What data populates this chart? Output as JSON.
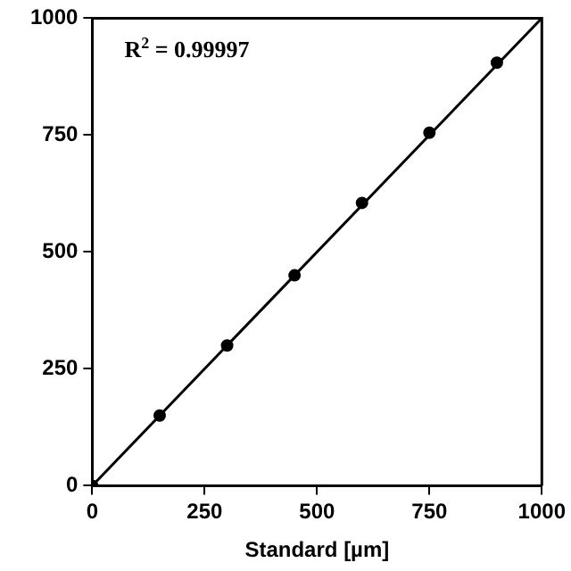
{
  "chart_data": {
    "type": "scatter",
    "xlabel": "Standard [µm]",
    "annotations": [
      "R$^{2}$ = 0.99997"
    ],
    "xlim": [
      0,
      1000
    ],
    "ylim": [
      0,
      1000
    ],
    "xticks": [
      0,
      250,
      500,
      750,
      1000
    ],
    "yticks": [
      0,
      250,
      500,
      750,
      1000
    ],
    "grid": false,
    "legend": false,
    "series": [
      {
        "marker": "circle",
        "color": "#000000",
        "x": [
          0,
          150,
          300,
          450,
          600,
          750,
          900
        ],
        "values": [
          0,
          150,
          300,
          450,
          605,
          755,
          905
        ]
      },
      {
        "type": "line",
        "marker": "none",
        "color": "#000000",
        "x": [
          0,
          1000
        ],
        "values": [
          0,
          1000
        ]
      }
    ]
  }
}
